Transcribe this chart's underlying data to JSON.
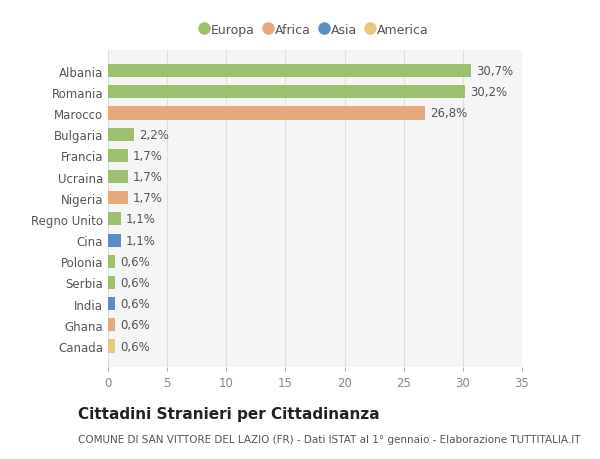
{
  "countries": [
    "Albania",
    "Romania",
    "Marocco",
    "Bulgaria",
    "Francia",
    "Ucraina",
    "Nigeria",
    "Regno Unito",
    "Cina",
    "Polonia",
    "Serbia",
    "India",
    "Ghana",
    "Canada"
  ],
  "values": [
    30.7,
    30.2,
    26.8,
    2.2,
    1.7,
    1.7,
    1.7,
    1.1,
    1.1,
    0.6,
    0.6,
    0.6,
    0.6,
    0.6
  ],
  "labels": [
    "30,7%",
    "30,2%",
    "26,8%",
    "2,2%",
    "1,7%",
    "1,7%",
    "1,7%",
    "1,1%",
    "1,1%",
    "0,6%",
    "0,6%",
    "0,6%",
    "0,6%",
    "0,6%"
  ],
  "continents": [
    "Europa",
    "Europa",
    "Africa",
    "Europa",
    "Europa",
    "Europa",
    "Africa",
    "Europa",
    "Asia",
    "Europa",
    "Europa",
    "Asia",
    "Africa",
    "America"
  ],
  "colors": {
    "Europa": "#9dc06e",
    "Africa": "#e8a97a",
    "Asia": "#5b8ec4",
    "America": "#e8c87a"
  },
  "xlim": [
    0,
    35
  ],
  "xticks": [
    0,
    5,
    10,
    15,
    20,
    25,
    30,
    35
  ],
  "title": "Cittadini Stranieri per Cittadinanza",
  "subtitle": "COMUNE DI SAN VITTORE DEL LAZIO (FR) - Dati ISTAT al 1° gennaio - Elaborazione TUTTITALIA.IT",
  "background_color": "#ffffff",
  "plot_bg_color": "#f5f5f5",
  "grid_color": "#e0e0e0",
  "bar_height": 0.62,
  "label_fontsize": 8.5,
  "tick_fontsize": 8.5,
  "title_fontsize": 11,
  "subtitle_fontsize": 7.5
}
